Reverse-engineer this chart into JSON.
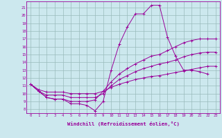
{
  "bg_color": "#cce8ee",
  "line_color": "#990099",
  "grid_color": "#99bbbb",
  "xlabel": "Windchill (Refroidissement éolien,°C)",
  "x_ticks": [
    0,
    1,
    2,
    3,
    4,
    5,
    6,
    7,
    8,
    9,
    10,
    11,
    12,
    13,
    14,
    15,
    16,
    17,
    18,
    19,
    20,
    21,
    22,
    23
  ],
  "y_ticks": [
    8,
    9,
    10,
    11,
    12,
    13,
    14,
    15,
    16,
    17,
    18,
    19,
    20,
    21
  ],
  "xlim": [
    -0.5,
    23.5
  ],
  "ylim": [
    7.5,
    21.8
  ],
  "series": [
    {
      "x": [
        0,
        1,
        2,
        3,
        4,
        5,
        6,
        7,
        8,
        9,
        10,
        11,
        12,
        13,
        14,
        15,
        16,
        17,
        18,
        19,
        20,
        21,
        22
      ],
      "y": [
        11.2,
        10.3,
        9.5,
        9.3,
        9.3,
        8.7,
        8.7,
        8.5,
        7.8,
        9.0,
        13.0,
        16.3,
        18.5,
        20.2,
        20.2,
        21.3,
        21.3,
        17.2,
        14.8,
        13.0,
        13.0,
        12.8,
        12.5
      ]
    },
    {
      "x": [
        0,
        1,
        2,
        3,
        4,
        5,
        6,
        7,
        8,
        9,
        10,
        11,
        12,
        13,
        14,
        15,
        16,
        17,
        18,
        19,
        20,
        21,
        22,
        23
      ],
      "y": [
        11.2,
        10.3,
        9.5,
        9.3,
        9.3,
        9.0,
        9.0,
        9.0,
        9.2,
        10.3,
        11.5,
        12.5,
        13.2,
        13.8,
        14.3,
        14.8,
        15.0,
        15.5,
        16.0,
        16.5,
        16.8,
        17.0,
        17.0,
        17.0
      ]
    },
    {
      "x": [
        0,
        1,
        2,
        3,
        4,
        5,
        6,
        7,
        8,
        9,
        10,
        11,
        12,
        13,
        14,
        15,
        16,
        17,
        18,
        19,
        20,
        21,
        22,
        23
      ],
      "y": [
        11.2,
        10.3,
        9.8,
        9.8,
        9.8,
        9.5,
        9.5,
        9.5,
        9.5,
        10.0,
        11.0,
        11.8,
        12.3,
        12.8,
        13.2,
        13.5,
        13.8,
        14.0,
        14.3,
        14.7,
        15.0,
        15.2,
        15.3,
        15.3
      ]
    },
    {
      "x": [
        0,
        1,
        2,
        3,
        4,
        5,
        6,
        7,
        8,
        9,
        10,
        11,
        12,
        13,
        14,
        15,
        16,
        17,
        18,
        19,
        20,
        21,
        22,
        23
      ],
      "y": [
        11.2,
        10.5,
        10.2,
        10.2,
        10.2,
        10.0,
        10.0,
        10.0,
        10.0,
        10.3,
        10.8,
        11.2,
        11.5,
        11.8,
        12.0,
        12.2,
        12.3,
        12.5,
        12.7,
        12.9,
        13.1,
        13.3,
        13.5,
        13.5
      ]
    }
  ]
}
